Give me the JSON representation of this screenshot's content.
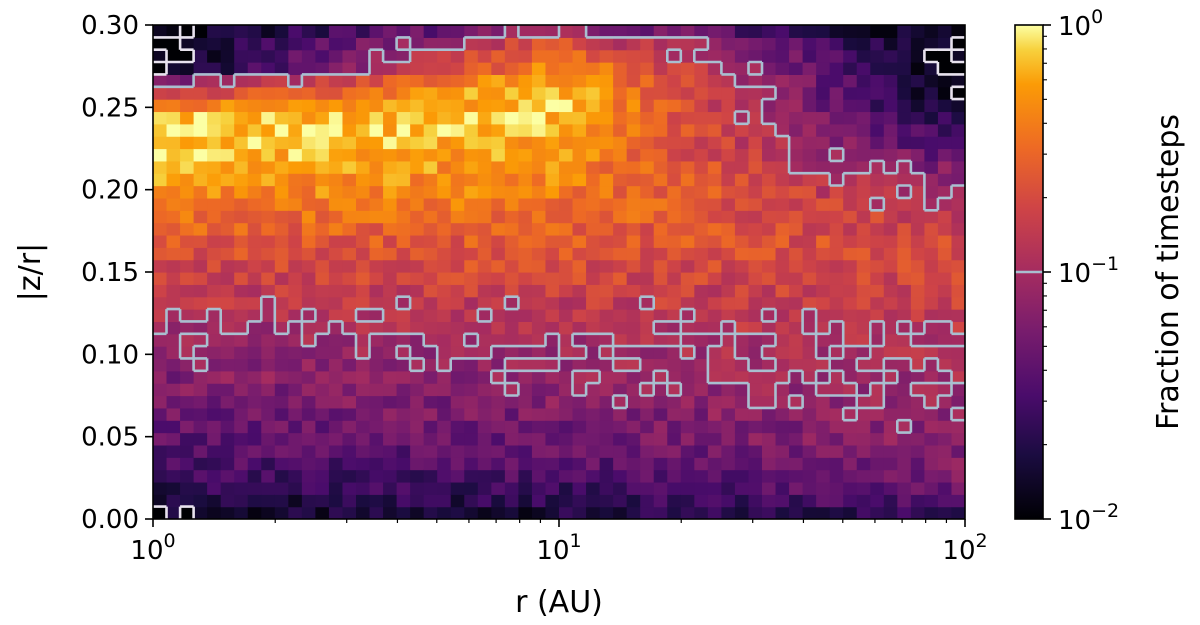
{
  "chart_data": {
    "type": "heatmap",
    "title": "",
    "xlabel": "r (AU)",
    "ylabel": "|z/r|",
    "x_scale": "log",
    "xlim": [
      1,
      100
    ],
    "ylim": [
      0,
      0.3
    ],
    "x_ticks": [
      {
        "value": 1,
        "base": "10",
        "exp": "0"
      },
      {
        "value": 10,
        "base": "10",
        "exp": "1"
      },
      {
        "value": 100,
        "base": "10",
        "exp": "2"
      }
    ],
    "y_ticks": [
      {
        "value": 0.0,
        "label": "0.00"
      },
      {
        "value": 0.05,
        "label": "0.05"
      },
      {
        "value": 0.1,
        "label": "0.10"
      },
      {
        "value": 0.15,
        "label": "0.15"
      },
      {
        "value": 0.2,
        "label": "0.20"
      },
      {
        "value": 0.25,
        "label": "0.25"
      },
      {
        "value": 0.3,
        "label": "0.30"
      }
    ],
    "colormap": "inferno",
    "colorbar": {
      "label": "Fraction of timesteps",
      "scale": "log",
      "range": [
        0.01,
        1
      ],
      "ticks": [
        {
          "value": 0.01,
          "base": "10",
          "exp": "−2"
        },
        {
          "value": 0.1,
          "base": "10",
          "exp": "−1"
        },
        {
          "value": 1,
          "base": "10",
          "exp": "0"
        }
      ],
      "contour_level_marked": 0.1
    },
    "contours": [
      {
        "level": 0.1,
        "color": "#a9bfd0"
      },
      {
        "level": 0.01,
        "color": "#e8e2ee"
      }
    ],
    "grid": false,
    "legend": "none",
    "fraction_profile": {
      "z_over_r": [
        0.0,
        0.015,
        0.03,
        0.045,
        0.06,
        0.075,
        0.09,
        0.105,
        0.12,
        0.135,
        0.15,
        0.165,
        0.18,
        0.195,
        0.21,
        0.225,
        0.24,
        0.255,
        0.27,
        0.3
      ],
      "fraction_at_r_1AU": [
        0.012,
        0.02,
        0.03,
        0.038,
        0.045,
        0.055,
        0.065,
        0.08,
        0.1,
        0.13,
        0.17,
        0.22,
        0.3,
        0.42,
        0.6,
        0.8,
        0.85,
        0.2,
        0.01,
        0.01
      ],
      "fraction_at_r_10AU": [
        0.015,
        0.025,
        0.035,
        0.045,
        0.055,
        0.07,
        0.085,
        0.1,
        0.12,
        0.15,
        0.19,
        0.24,
        0.3,
        0.38,
        0.45,
        0.55,
        0.7,
        0.8,
        0.6,
        0.02
      ],
      "fraction_at_r_100AU": [
        0.02,
        0.04,
        0.06,
        0.07,
        0.08,
        0.09,
        0.1,
        0.12,
        0.14,
        0.16,
        0.18,
        0.2,
        0.15,
        0.1,
        0.06,
        0.03,
        0.02,
        0.01,
        0.01,
        0.01
      ]
    }
  }
}
